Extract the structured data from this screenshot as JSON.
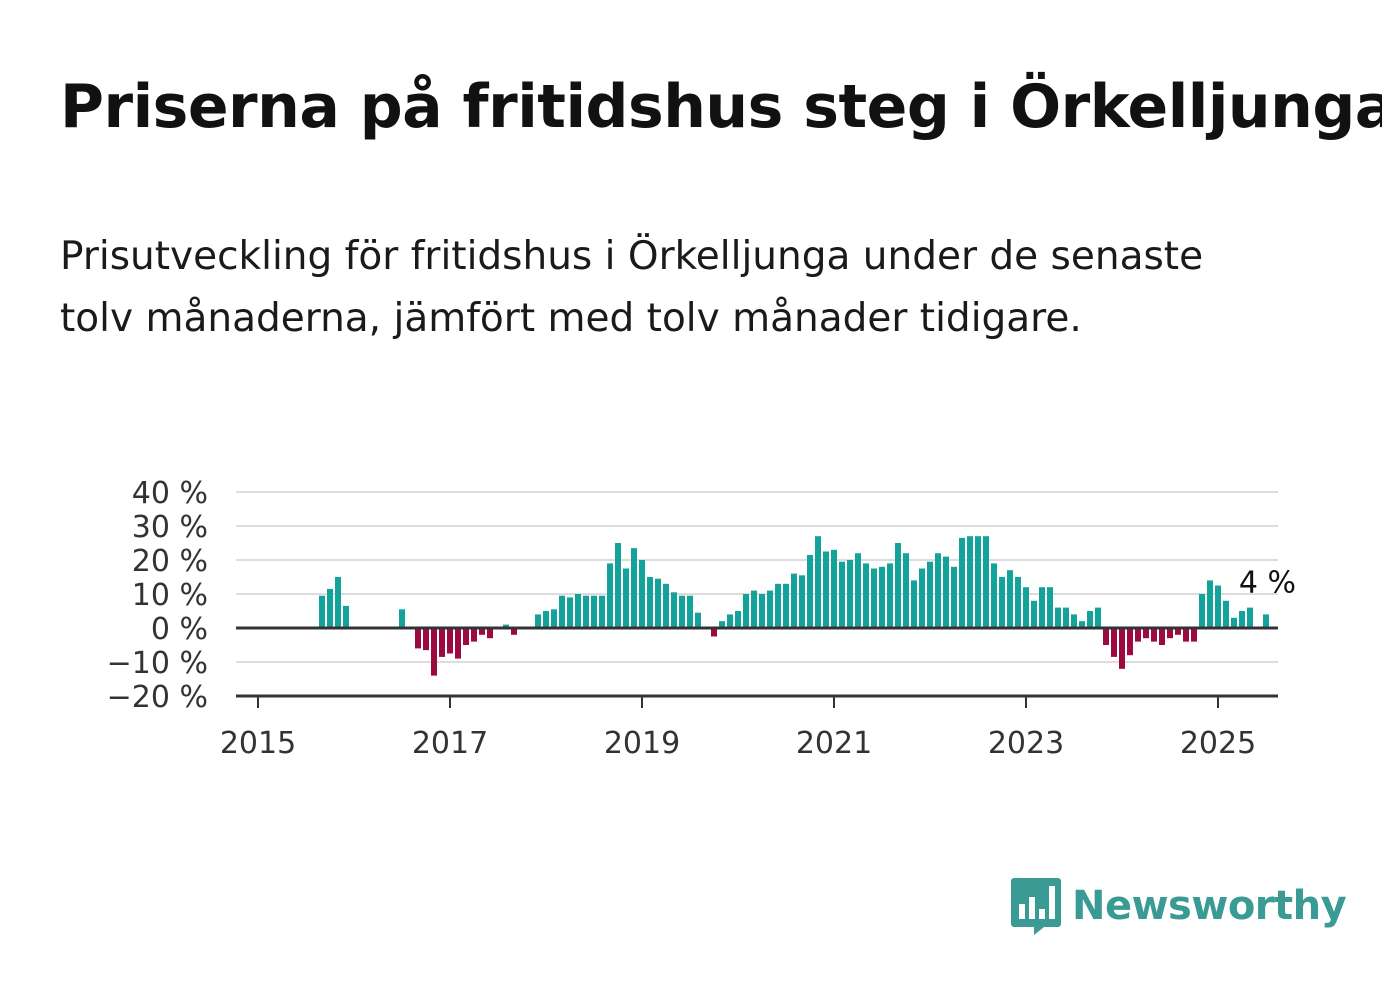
{
  "title": "Priserna på fritidshus steg i Örkelljunga",
  "subtitle": "Prisutveckling för fritidshus i Örkelljunga under de senaste tolv månaderna, jämfört med tolv månader tidigare.",
  "brand": {
    "name": "Newsworthy",
    "color": "#3a9b94",
    "icon": "bar-chart-speech-bubble-icon"
  },
  "colors": {
    "positive": "#14a39a",
    "negative": "#9c0a3f",
    "grid": "#dddddd",
    "zero_line": "#333333"
  },
  "chart_data": {
    "type": "bar",
    "x_start": "2015-01",
    "frequency": "monthly",
    "values": [
      null,
      null,
      null,
      null,
      9.5,
      11.5,
      15,
      6.5,
      null,
      null,
      null,
      null,
      null,
      null,
      5.5,
      null,
      -6,
      -6.5,
      -14,
      -8.5,
      -7.5,
      -9,
      -5,
      -4,
      -2,
      -3,
      null,
      1,
      -2,
      null,
      null,
      4,
      5,
      5.5,
      9.5,
      9,
      10,
      9.5,
      9.5,
      9.5,
      19,
      25,
      17.5,
      23.5,
      20,
      15,
      14.5,
      13,
      10.5,
      9.5,
      9.5,
      4.5,
      null,
      -2.5,
      2,
      4,
      5,
      10,
      11,
      10,
      11,
      13,
      13,
      16,
      15.5,
      21.5,
      27,
      22.5,
      23,
      19.5,
      20,
      22,
      19,
      17.5,
      18,
      19,
      25,
      22,
      14,
      17.5,
      19.5,
      22,
      21,
      18,
      26.5,
      27,
      27,
      27,
      19,
      15,
      17,
      15,
      12,
      8,
      12,
      12,
      6,
      6,
      4,
      2,
      5,
      6,
      -5,
      -8.5,
      -12,
      -8,
      -4,
      -3,
      -4,
      -5,
      -3,
      -2,
      -4,
      -4,
      10,
      14,
      12.5,
      8,
      3,
      5,
      6,
      null,
      4
    ],
    "y_ticks": [
      "40 %",
      "30 %",
      "20 %",
      "10 %",
      "0 %",
      "−10 %",
      "−20 %"
    ],
    "y_tick_values": [
      40,
      30,
      20,
      10,
      0,
      -10,
      -20
    ],
    "ylim": [
      -20,
      40
    ],
    "x_ticks": [
      "2015",
      "2017",
      "2019",
      "2021",
      "2023",
      "2025"
    ],
    "annotation": "4 %",
    "grid": true,
    "legend": "none"
  }
}
